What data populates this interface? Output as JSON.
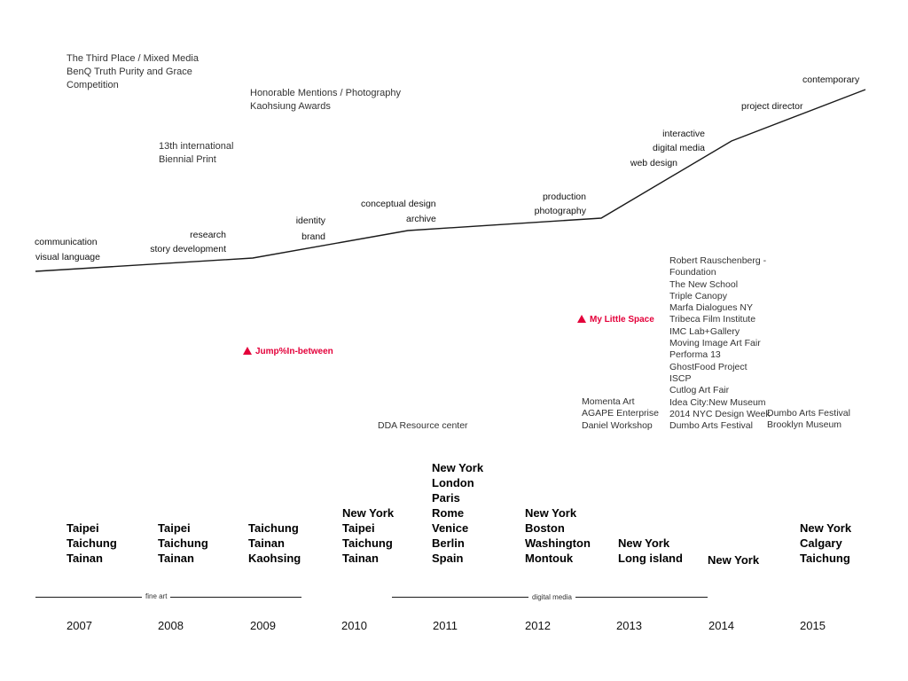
{
  "awards": [
    "The Third Place / Mixed Media\nBenQ Truth Purity and Grace\nCompetition",
    "Honorable Mentions / Photography\nKaohsiung Awards",
    "13th international\nBiennial Print"
  ],
  "skills": {
    "communication": "communication",
    "visual_language": "visual language",
    "research": "research",
    "story_development": "story development",
    "identity": "identity",
    "brand": "brand",
    "conceptual_design": "conceptual design",
    "archive": "archive",
    "production": "production",
    "photography": "photography",
    "interactive": "interactive",
    "digital_media": "digital media",
    "web_design": "web design",
    "project_director": "project director",
    "contemporary": "contemporary"
  },
  "projects": {
    "jump": "Jump%In-between",
    "my_little_space": "My Little Space"
  },
  "clients": {
    "dda": "DDA Resource center",
    "group_2012": "Momenta Art\nAGAPE Enterprise\nDaniel Workshop",
    "group_2013": "Robert Rauschenberg -\nFoundation\nThe New School\nTriple Canopy\nMarfa Dialogues NY\nTribeca Film Institute\nIMC Lab+Gallery\nMoving Image Art Fair\nPerforma 13\nGhostFood Project\nISCP\nCutlog Art Fair\nIdea City:New Museum\n2014 NYC Design Week\nDumbo Arts Festival",
    "group_2014": "Dumbo Arts Festival\nBrooklyn Museum"
  },
  "cities": [
    "Taipei\nTaichung\nTainan",
    "Taipei\nTaichung\nTainan",
    "Taichung\nTainan\nKaohsing",
    "New York\nTaipei\nTaichung\nTainan",
    "New York\nLondon\nParis\nRome\nVenice\nBerlin\nSpain",
    "New York\nBoston\nWashington\nMontouk",
    "New York\nLong island",
    "New York",
    "New York\nCalgary\nTaichung"
  ],
  "segments": {
    "fine_art": "fine art",
    "digital_media": "digital media"
  },
  "years": [
    "2007",
    "2008",
    "2009",
    "2010",
    "2011",
    "2012",
    "2013",
    "2014",
    "2015"
  ],
  "colors": {
    "accent": "#e4003a",
    "line": "#1a1a1a"
  }
}
